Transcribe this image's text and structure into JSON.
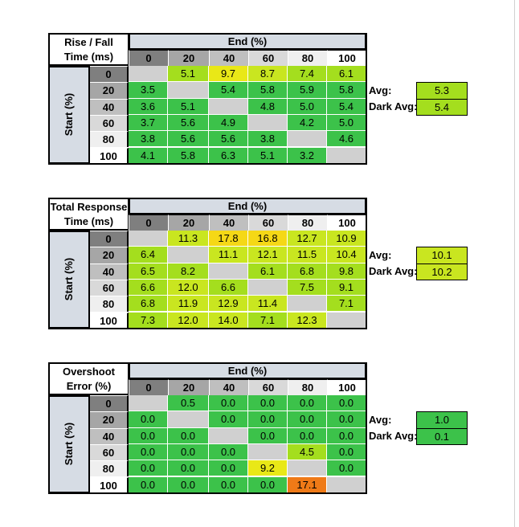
{
  "colors": {
    "header_blue": "#d6dce4",
    "green": "#3cc24a",
    "lime": "#a4de1e",
    "light_lime": "#c9e620",
    "yellow": "#e9e817",
    "gold": "#f5d816",
    "orange": "#ef7a17",
    "gray": "#d0d0d0"
  },
  "chart_data": [
    {
      "type": "table",
      "title_lines": [
        "Rise / Fall",
        "Time (ms)"
      ],
      "col_title": "End (%)",
      "row_title": "Start (%)",
      "cols": [
        "0",
        "20",
        "40",
        "60",
        "80",
        "100"
      ],
      "rows": [
        "0",
        "20",
        "40",
        "60",
        "80",
        "100"
      ],
      "values": [
        [
          "",
          "5.1",
          "9.7",
          "8.7",
          "7.4",
          "6.1"
        ],
        [
          "3.5",
          "",
          "5.4",
          "5.8",
          "5.9",
          "5.8"
        ],
        [
          "3.6",
          "5.1",
          "",
          "4.8",
          "5.0",
          "5.4"
        ],
        [
          "3.7",
          "5.6",
          "4.9",
          "",
          "4.2",
          "5.0"
        ],
        [
          "3.8",
          "5.6",
          "5.6",
          "3.8",
          "",
          "4.6"
        ],
        [
          "4.1",
          "5.8",
          "6.3",
          "5.1",
          "3.2",
          ""
        ]
      ],
      "colors": [
        [
          "gray",
          "lime",
          "yellow",
          "light_lime",
          "lime",
          "lime"
        ],
        [
          "green",
          "gray",
          "green",
          "green",
          "green",
          "green"
        ],
        [
          "green",
          "green",
          "gray",
          "green",
          "green",
          "green"
        ],
        [
          "green",
          "green",
          "green",
          "gray",
          "green",
          "green"
        ],
        [
          "green",
          "green",
          "green",
          "green",
          "gray",
          "green"
        ],
        [
          "green",
          "green",
          "green",
          "green",
          "green",
          "gray"
        ]
      ],
      "avg_label": "Avg:",
      "avg_value": "5.3",
      "avg_color": "lime",
      "dark_avg_label": "Dark Avg:",
      "dark_avg_value": "5.4",
      "dark_avg_color": "lime"
    },
    {
      "type": "table",
      "title_lines": [
        "Total Response",
        "Time (ms)"
      ],
      "col_title": "End (%)",
      "row_title": "Start (%)",
      "cols": [
        "0",
        "20",
        "40",
        "60",
        "80",
        "100"
      ],
      "rows": [
        "0",
        "20",
        "40",
        "60",
        "80",
        "100"
      ],
      "values": [
        [
          "",
          "11.3",
          "17.8",
          "16.8",
          "12.7",
          "10.9"
        ],
        [
          "6.4",
          "",
          "11.1",
          "12.1",
          "11.5",
          "10.4"
        ],
        [
          "6.5",
          "8.2",
          "",
          "6.1",
          "6.8",
          "9.8"
        ],
        [
          "6.6",
          "12.0",
          "6.6",
          "",
          "7.5",
          "9.1"
        ],
        [
          "6.8",
          "11.9",
          "12.9",
          "11.4",
          "",
          "7.1"
        ],
        [
          "7.3",
          "12.0",
          "14.0",
          "7.1",
          "12.3",
          ""
        ]
      ],
      "colors": [
        [
          "gray",
          "light_lime",
          "gold",
          "gold",
          "light_lime",
          "light_lime"
        ],
        [
          "lime",
          "gray",
          "light_lime",
          "light_lime",
          "light_lime",
          "light_lime"
        ],
        [
          "lime",
          "lime",
          "gray",
          "lime",
          "lime",
          "lime"
        ],
        [
          "lime",
          "light_lime",
          "lime",
          "gray",
          "lime",
          "lime"
        ],
        [
          "lime",
          "light_lime",
          "light_lime",
          "light_lime",
          "gray",
          "lime"
        ],
        [
          "lime",
          "light_lime",
          "light_lime",
          "lime",
          "light_lime",
          "gray"
        ]
      ],
      "avg_label": "Avg:",
      "avg_value": "10.1",
      "avg_color": "light_lime",
      "dark_avg_label": "Dark Avg:",
      "dark_avg_value": "10.2",
      "dark_avg_color": "light_lime"
    },
    {
      "type": "table",
      "title_lines": [
        "Overshoot",
        "Error (%)"
      ],
      "col_title": "End (%)",
      "row_title": "Start (%)",
      "cols": [
        "0",
        "20",
        "40",
        "60",
        "80",
        "100"
      ],
      "rows": [
        "0",
        "20",
        "40",
        "60",
        "80",
        "100"
      ],
      "values": [
        [
          "",
          "0.5",
          "0.0",
          "0.0",
          "0.0",
          "0.0"
        ],
        [
          "0.0",
          "",
          "0.0",
          "0.0",
          "0.0",
          "0.0"
        ],
        [
          "0.0",
          "0.0",
          "",
          "0.0",
          "0.0",
          "0.0"
        ],
        [
          "0.0",
          "0.0",
          "0.0",
          "",
          "4.5",
          "0.0"
        ],
        [
          "0.0",
          "0.0",
          "0.0",
          "9.2",
          "",
          "0.0"
        ],
        [
          "0.0",
          "0.0",
          "0.0",
          "0.0",
          "17.1",
          ""
        ]
      ],
      "colors": [
        [
          "gray",
          "green",
          "green",
          "green",
          "green",
          "green"
        ],
        [
          "green",
          "gray",
          "green",
          "green",
          "green",
          "green"
        ],
        [
          "green",
          "green",
          "gray",
          "green",
          "green",
          "green"
        ],
        [
          "green",
          "green",
          "green",
          "gray",
          "lime",
          "green"
        ],
        [
          "green",
          "green",
          "green",
          "yellow",
          "gray",
          "green"
        ],
        [
          "green",
          "green",
          "green",
          "green",
          "orange",
          "gray"
        ]
      ],
      "avg_label": "Avg:",
      "avg_value": "1.0",
      "avg_color": "green",
      "dark_avg_label": "Dark Avg:",
      "dark_avg_value": "0.1",
      "dark_avg_color": "green"
    }
  ]
}
